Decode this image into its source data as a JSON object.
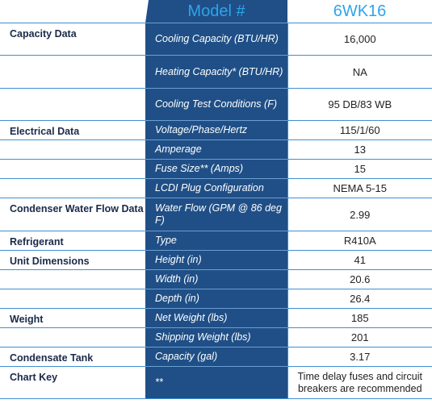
{
  "header": {
    "model_label": "Model #",
    "model_value": "6WK16"
  },
  "rows": [
    {
      "category": "Capacity Data",
      "attribute": "Cooling Capacity (BTU/HR)",
      "value": "16,000"
    },
    {
      "category": "",
      "attribute": "Heating Capacity* (BTU/HR)",
      "value": "NA"
    },
    {
      "category": "",
      "attribute": "Cooling Test Conditions (F)",
      "value": "95 DB/83 WB"
    },
    {
      "category": "Electrical Data",
      "attribute": "Voltage/Phase/Hertz",
      "value": "115/1/60"
    },
    {
      "category": "",
      "attribute": "Amperage",
      "value": "13"
    },
    {
      "category": "",
      "attribute": "Fuse Size** (Amps)",
      "value": "15"
    },
    {
      "category": "",
      "attribute": "LCDI Plug Configuration",
      "value": "NEMA 5-15"
    },
    {
      "category": "Condenser Water Flow Data",
      "attribute": "Water Flow (GPM @ 86 deg F)",
      "value": "2.99"
    },
    {
      "category": "Refrigerant",
      "attribute": "Type",
      "value": "R410A"
    },
    {
      "category": "Unit Dimensions",
      "attribute": "Height (in)",
      "value": "41"
    },
    {
      "category": "",
      "attribute": "Width (in)",
      "value": "20.6"
    },
    {
      "category": "",
      "attribute": "Depth (in)",
      "value": "26.4"
    },
    {
      "category": "Weight",
      "attribute": "Net Weight (lbs)",
      "value": "185"
    },
    {
      "category": "",
      "attribute": "Shipping Weight (lbs)",
      "value": "201"
    },
    {
      "category": "Condensate Tank",
      "attribute": "Capacity (gal)",
      "value": "3.17"
    },
    {
      "category": "Chart Key",
      "attribute": "**",
      "value": "Time delay fuses and circuit breakers are recommended"
    }
  ]
}
